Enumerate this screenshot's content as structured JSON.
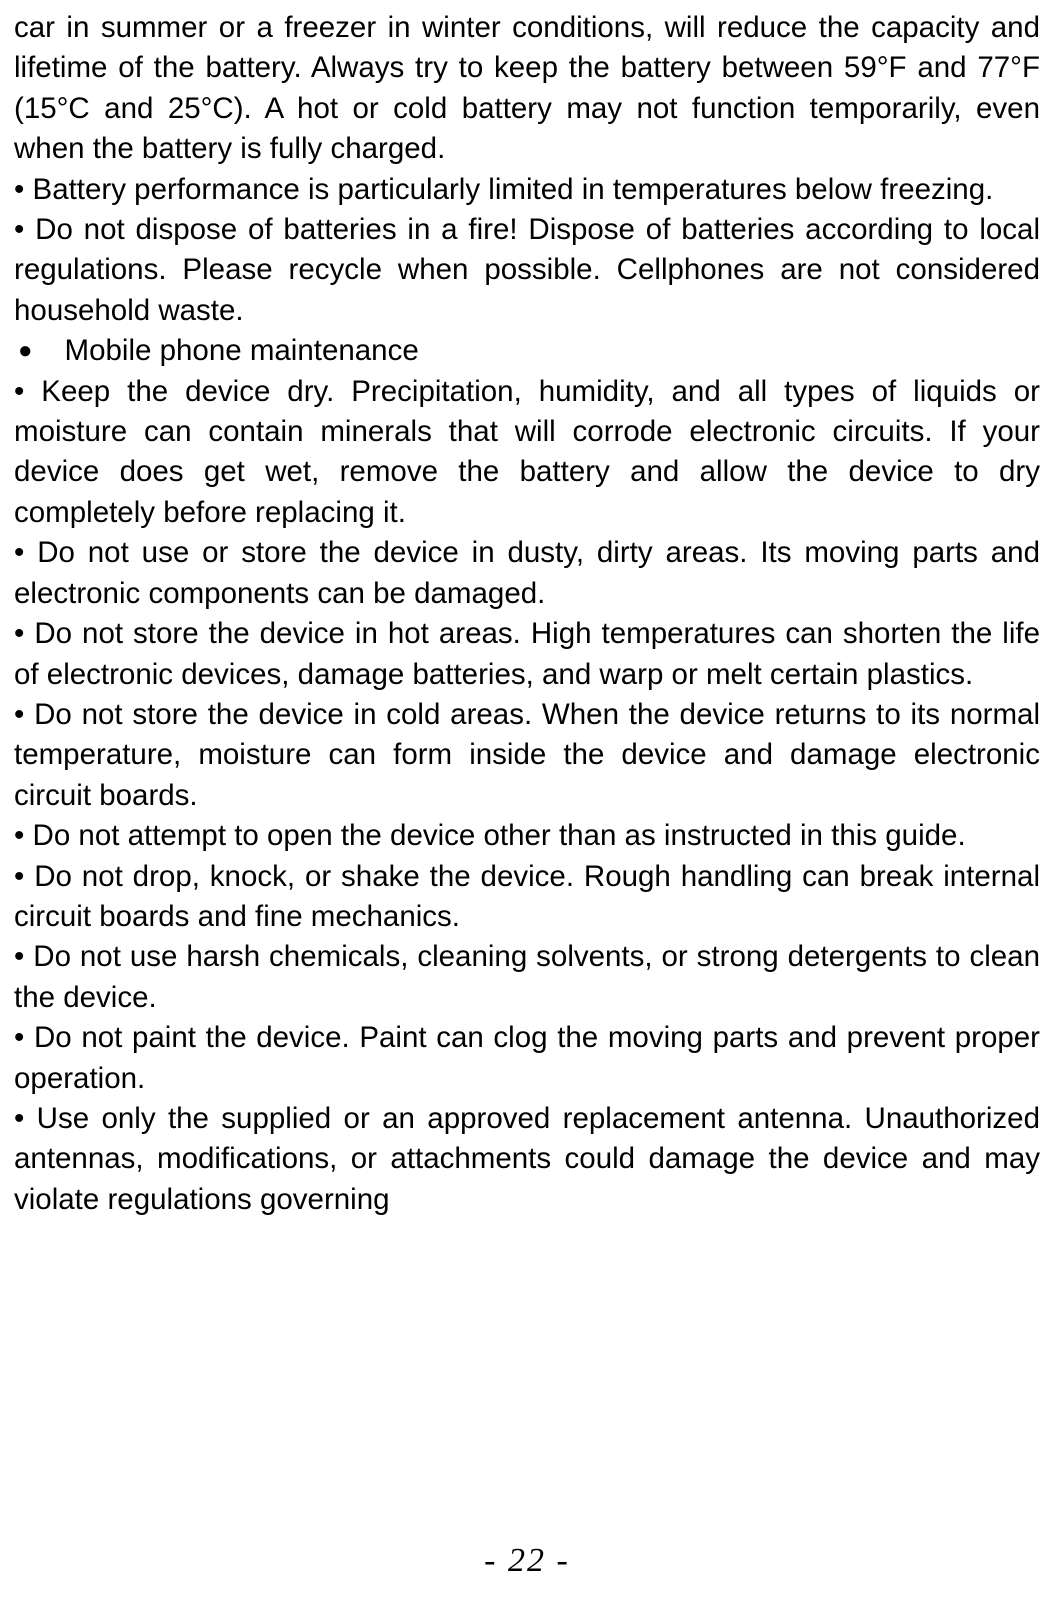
{
  "page": {
    "number": "- 22 -"
  },
  "text": {
    "p1": "car in summer or a freezer in winter conditions, will reduce the capacity and lifetime of the battery. Always try to keep the battery between 59°F and 77°F (15°C and 25°C). A hot or cold battery may not function temporarily, even when the battery is fully charged.",
    "p2": "• Battery performance is particularly limited in temperatures below freezing.",
    "p3": "• Do not dispose of batteries in a fire! Dispose of batteries according to local regulations. Please recycle when possible. Cellphones are not considered household waste.",
    "section_bullet": "●",
    "section_title": "Mobile phone maintenance",
    "p4": "• Keep the device dry. Precipitation, humidity, and all types of liquids or moisture can contain minerals that will corrode electronic circuits. If your device does get wet, remove the battery and allow the device to dry completely before replacing it.",
    "p5": "• Do not use or store the device in dusty, dirty areas. Its moving parts and electronic components can be damaged.",
    "p6": "• Do not store the device in hot areas. High temperatures can shorten the life of electronic devices, damage batteries, and warp or melt certain plastics.",
    "p7": "• Do not store the device in cold areas. When the device returns to its normal temperature, moisture can form inside the device and damage electronic circuit boards.",
    "p8": "• Do not attempt to open the device other than as instructed in this guide.",
    "p9": "• Do not drop, knock, or shake the device. Rough handling can break internal circuit boards and fine mechanics.",
    "p10": "• Do not use harsh chemicals, cleaning solvents, or strong detergents to clean the device.",
    "p11": "• Do not paint the device. Paint can clog the moving parts and prevent proper operation.",
    "p12": "• Use only the supplied or an approved replacement antenna. Unauthorized antennas, modifications, or attachments could damage the device and may violate regulations governing"
  }
}
